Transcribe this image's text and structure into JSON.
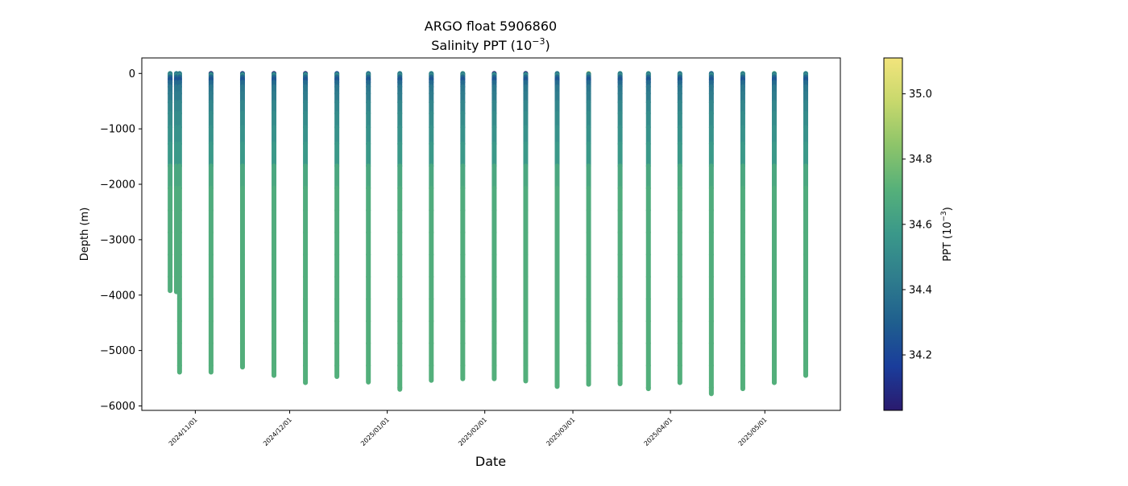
{
  "chart_data": {
    "type": "scatter",
    "title": "ARGO float 5906860",
    "subtitle_prefix": "Salinity PPT (10",
    "subtitle_exp": "−3",
    "subtitle_suffix": ")",
    "xlabel": "Date",
    "ylabel": "Depth (m)",
    "colorbar_label_prefix": "PPT (10",
    "colorbar_label_exp": "−3",
    "colorbar_label_suffix": ")",
    "xlim": [
      "2024-10-15",
      "2025-05-25"
    ],
    "ylim": [
      -6080,
      280
    ],
    "colorbar_range": [
      34.03,
      35.11
    ],
    "colormap": "haline",
    "colorbar_stops": [
      "#2a1a6e",
      "#1a3d9b",
      "#1f5f8e",
      "#2f7d8d",
      "#3a988a",
      "#55b07a",
      "#8cc46a",
      "#c7d86c",
      "#f2e47c"
    ],
    "y_ticks": [
      0,
      -1000,
      -2000,
      -3000,
      -4000,
      -5000,
      -6000
    ],
    "y_tick_labels": [
      "0",
      "−1000",
      "−2000",
      "−3000",
      "−4000",
      "−5000",
      "−6000"
    ],
    "x_ticks": [
      "2024-11-01",
      "2024-12-01",
      "2025-01-01",
      "2025-02-01",
      "2025-03-01",
      "2025-04-01",
      "2025-05-01"
    ],
    "x_tick_labels": [
      "2024/11/01",
      "2024/12/01",
      "2025/01/01",
      "2025/02/01",
      "2025/03/01",
      "2025/04/01",
      "2025/05/01"
    ],
    "colorbar_ticks": [
      34.2,
      34.4,
      34.6,
      34.8,
      35.0
    ],
    "colorbar_tick_labels": [
      "34.2",
      "34.4",
      "34.6",
      "34.8",
      "35.0"
    ],
    "profiles": [
      {
        "date": "2024-10-24",
        "max_depth": -3920
      },
      {
        "date": "2024-10-26",
        "max_depth": -3940
      },
      {
        "date": "2024-10-27",
        "max_depth": -5390
      },
      {
        "date": "2024-11-06",
        "max_depth": -5390
      },
      {
        "date": "2024-11-16",
        "max_depth": -5300
      },
      {
        "date": "2024-11-26",
        "max_depth": -5450
      },
      {
        "date": "2024-12-06",
        "max_depth": -5580
      },
      {
        "date": "2024-12-16",
        "max_depth": -5470
      },
      {
        "date": "2024-12-26",
        "max_depth": -5570
      },
      {
        "date": "2025-01-05",
        "max_depth": -5700
      },
      {
        "date": "2025-01-15",
        "max_depth": -5540
      },
      {
        "date": "2025-01-25",
        "max_depth": -5510
      },
      {
        "date": "2025-02-04",
        "max_depth": -5510
      },
      {
        "date": "2025-02-14",
        "max_depth": -5550
      },
      {
        "date": "2025-02-24",
        "max_depth": -5650
      },
      {
        "date": "2025-03-06",
        "max_depth": -5610
      },
      {
        "date": "2025-03-16",
        "max_depth": -5600
      },
      {
        "date": "2025-03-25",
        "max_depth": -5690
      },
      {
        "date": "2025-04-04",
        "max_depth": -5580
      },
      {
        "date": "2025-04-14",
        "max_depth": -5780
      },
      {
        "date": "2025-04-24",
        "max_depth": -5690
      },
      {
        "date": "2025-05-04",
        "max_depth": -5580
      },
      {
        "date": "2025-05-14",
        "max_depth": -5450
      }
    ],
    "salinity_profile": {
      "depths": [
        0,
        -50,
        -100,
        -150,
        -250,
        -400,
        -600,
        -1000,
        -1500,
        -2000,
        -6000
      ],
      "values": [
        34.3,
        34.55,
        34.2,
        34.3,
        34.4,
        34.42,
        34.48,
        34.53,
        34.58,
        34.68,
        34.7
      ]
    },
    "profile_surface_values": [
      34.6,
      34.5,
      34.5,
      34.03,
      34.1,
      34.05,
      34.03,
      34.2,
      34.4,
      34.5,
      34.55,
      34.6,
      34.03,
      34.03,
      34.45,
      34.9,
      34.55,
      34.6,
      34.5,
      34.3,
      34.6,
      34.7,
      34.55
    ]
  }
}
